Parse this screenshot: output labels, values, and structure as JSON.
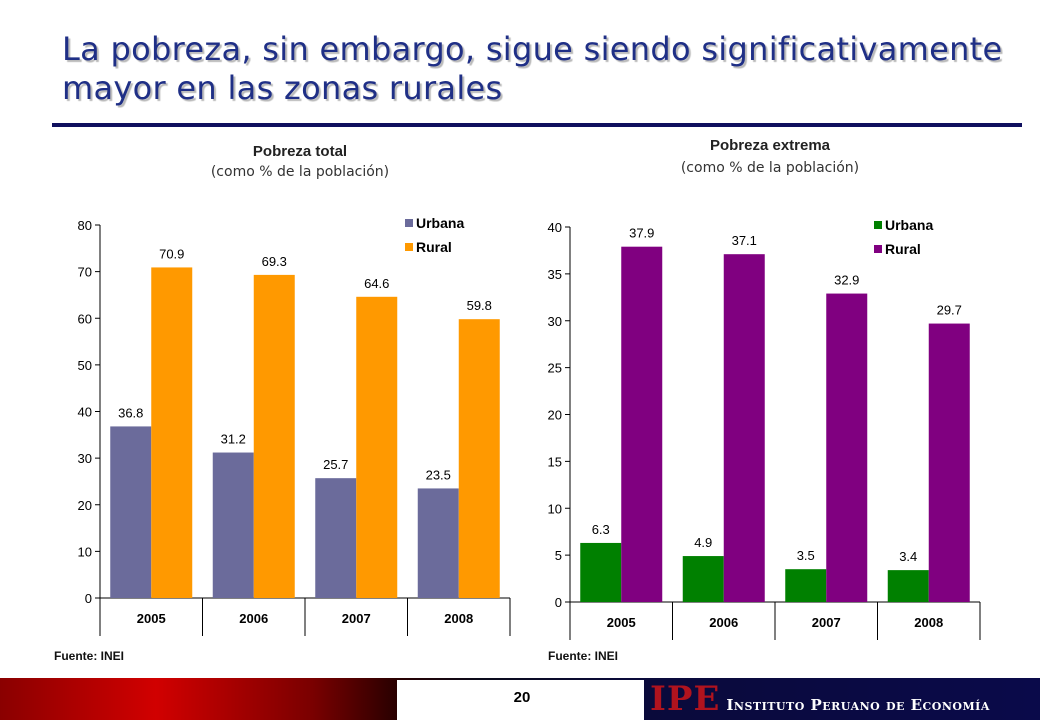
{
  "slide": {
    "title": "La pobreza, sin embargo, sigue siendo significativamente mayor en las zonas rurales",
    "page_number": "20",
    "logo_text": "IPE",
    "institute_name": "Instituto Peruano de Economía"
  },
  "chart_data": [
    {
      "type": "bar",
      "title": "Pobreza total",
      "subtitle": "(como % de la población)",
      "categories": [
        "2005",
        "2006",
        "2007",
        "2008"
      ],
      "series": [
        {
          "name": "Urbana",
          "values": [
            36.8,
            31.2,
            25.7,
            23.5
          ],
          "color": "#6b6b9b"
        },
        {
          "name": "Rural",
          "values": [
            70.9,
            69.3,
            64.6,
            59.8
          ],
          "color": "#ff9900"
        }
      ],
      "ylim": [
        0,
        80
      ],
      "yticks": [
        0,
        10,
        20,
        30,
        40,
        50,
        60,
        70,
        80
      ],
      "legend": "top-right",
      "grid": false,
      "source": "Fuente: INEI"
    },
    {
      "type": "bar",
      "title": "Pobreza extrema",
      "subtitle": "(como % de la población)",
      "categories": [
        "2005",
        "2006",
        "2007",
        "2008"
      ],
      "series": [
        {
          "name": "Urbana",
          "values": [
            6.3,
            4.9,
            3.5,
            3.4
          ],
          "color": "#008000"
        },
        {
          "name": "Rural",
          "values": [
            37.9,
            37.1,
            32.9,
            29.7
          ],
          "color": "#800080"
        }
      ],
      "ylim": [
        0,
        40
      ],
      "yticks": [
        0,
        5,
        10,
        15,
        20,
        25,
        30,
        35,
        40
      ],
      "legend": "top-right",
      "grid": false,
      "source": "Fuente: INEI"
    }
  ]
}
